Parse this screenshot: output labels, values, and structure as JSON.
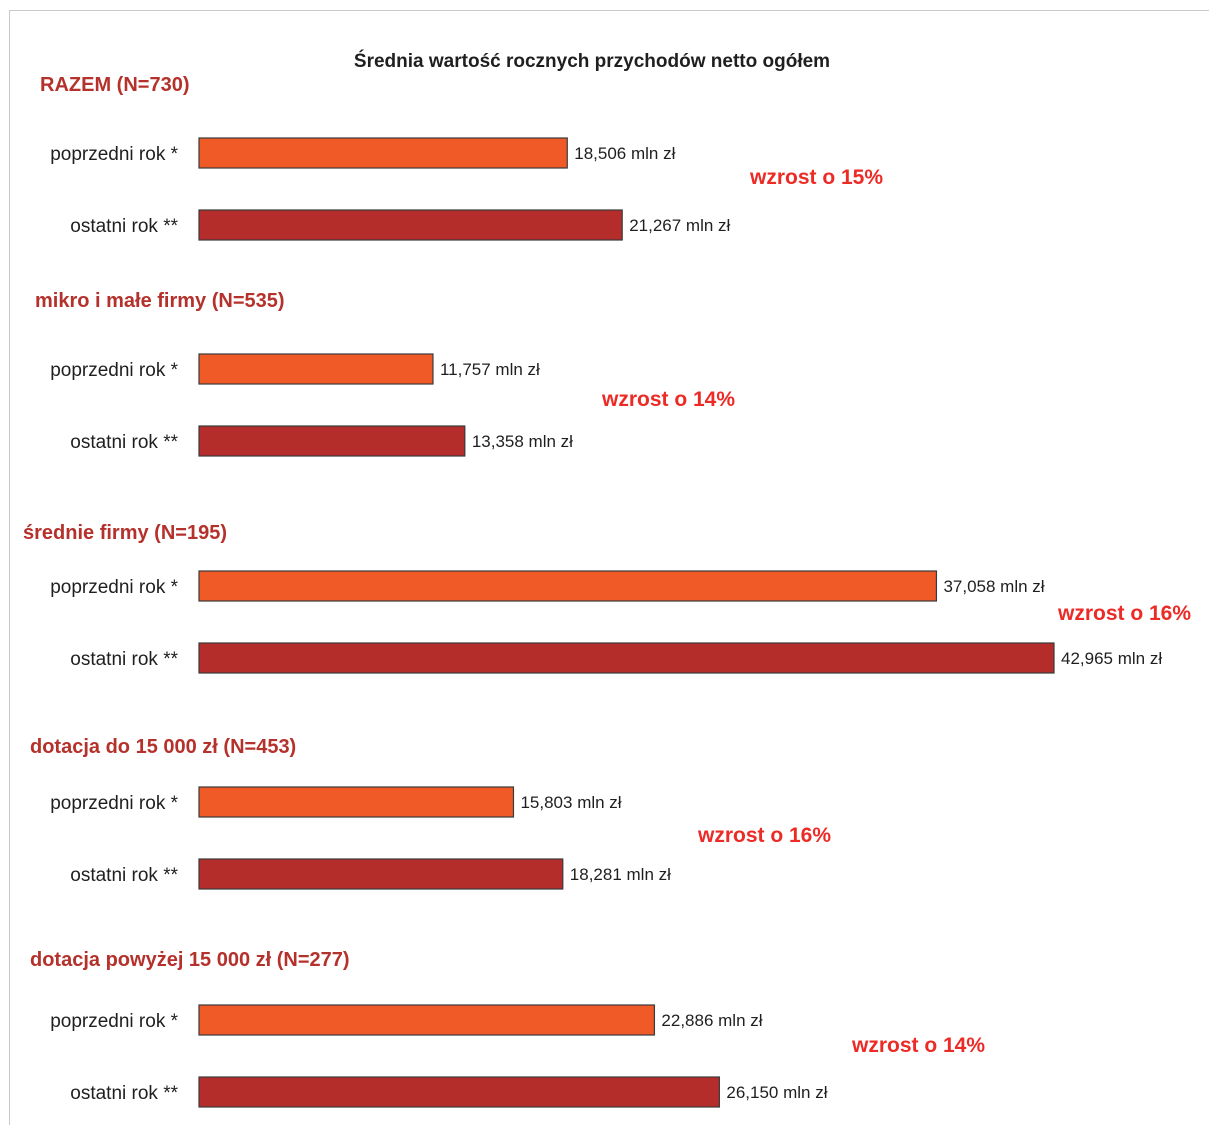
{
  "colors": {
    "previous_year": "#ef5a26",
    "last_year": "#b52d2b",
    "group_label": "#b5312b",
    "growth_label": "#ec2b26",
    "bar_outline": "#3a3a3a"
  },
  "chart_data": {
    "type": "bar",
    "orientation": "horizontal",
    "title": "Średnia wartość rocznych przychodów netto ogółem",
    "unit": "mln zł",
    "categories": [
      "poprzedni rok *",
      "ostatni rok **"
    ],
    "xlim": [
      0,
      42.965
    ],
    "grid": false,
    "legend": "none",
    "groups": [
      {
        "name": "RAZEM (N=730)",
        "values": [
          18.506,
          21.267
        ],
        "value_labels": [
          "18,506 mln zł",
          "21,267 mln zł"
        ],
        "growth": "wzrost o 15%"
      },
      {
        "name": "mikro i małe firmy (N=535)",
        "values": [
          11.757,
          13.358
        ],
        "value_labels": [
          "11,757 mln zł",
          "13,358 mln zł"
        ],
        "growth": "wzrost o 14%"
      },
      {
        "name": "średnie firmy (N=195)",
        "values": [
          37.058,
          42.965
        ],
        "value_labels": [
          "37,058 mln zł",
          "42,965 mln zł"
        ],
        "growth": "wzrost o 16%"
      },
      {
        "name": "dotacja do 15 000 zł (N=453)",
        "values": [
          15.803,
          18.281
        ],
        "value_labels": [
          "15,803 mln zł",
          "18,281 mln zł"
        ],
        "growth": "wzrost o 16%"
      },
      {
        "name": "dotacja powyżej 15 000 zł (N=277)",
        "values": [
          22.886,
          26.15
        ],
        "value_labels": [
          "22,886 mln zł",
          "26,150 mln zł"
        ],
        "growth": "wzrost o 14%"
      }
    ]
  }
}
